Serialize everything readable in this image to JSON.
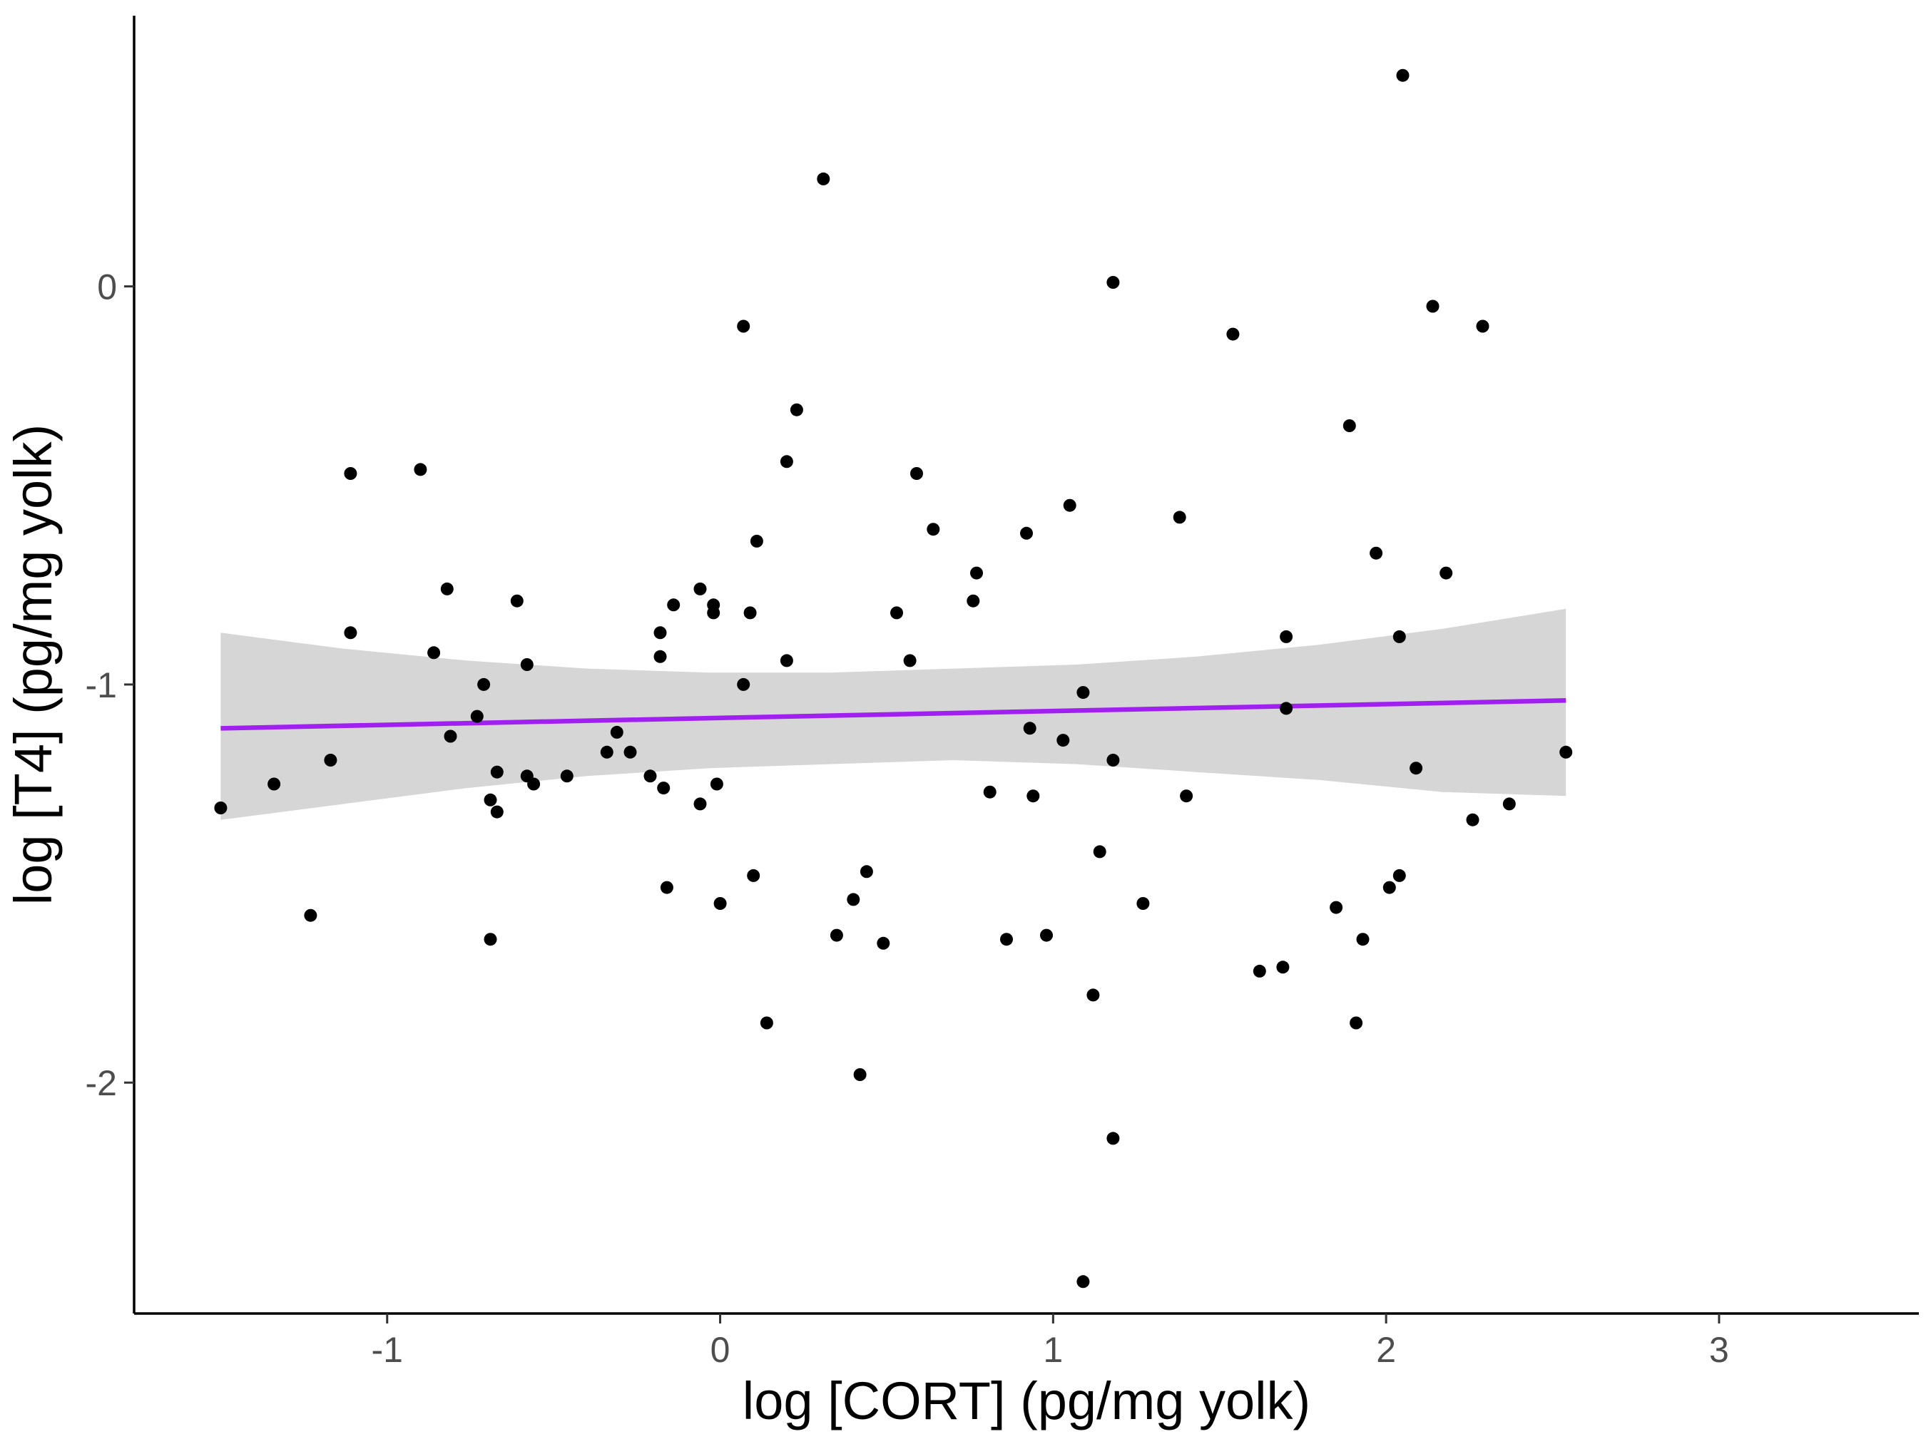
{
  "chart_data": {
    "type": "scatter",
    "title": "",
    "xlabel": "log [CORT] (pg/mg yolk)",
    "ylabel": "log [T4] (pg/mg yolk)",
    "xlim": [
      -1.76,
      3.6
    ],
    "ylim": [
      -2.58,
      0.68
    ],
    "x_ticks": [
      -1,
      0,
      1,
      2,
      3
    ],
    "x_tick_labels": [
      "-1",
      "0",
      "1",
      "2",
      "3"
    ],
    "y_ticks": [
      0,
      -1,
      -2
    ],
    "y_tick_labels": [
      "0",
      "-1",
      "-2"
    ],
    "grid": false,
    "legend": "none",
    "colors": {
      "points": "#000000",
      "fit_line": "#a020f0",
      "confidence_band": "#d6d6d6",
      "axis": "#000000",
      "tick_label": "#4d4d4d"
    },
    "points": [
      [
        -1.5,
        -1.31
      ],
      [
        -1.34,
        -1.25
      ],
      [
        -1.23,
        -1.58
      ],
      [
        -1.17,
        -1.19
      ],
      [
        -1.11,
        -0.47
      ],
      [
        -1.11,
        -0.87
      ],
      [
        -0.9,
        -0.46
      ],
      [
        -0.86,
        -0.92
      ],
      [
        -0.82,
        -0.76
      ],
      [
        -0.81,
        -1.13
      ],
      [
        -0.73,
        -1.08
      ],
      [
        -0.71,
        -1.0
      ],
      [
        -0.69,
        -1.29
      ],
      [
        -0.69,
        -1.64
      ],
      [
        -0.67,
        -1.22
      ],
      [
        -0.67,
        -1.32
      ],
      [
        -0.61,
        -0.79
      ],
      [
        -0.58,
        -0.95
      ],
      [
        -0.58,
        -1.23
      ],
      [
        -0.56,
        -1.25
      ],
      [
        -0.46,
        -1.23
      ],
      [
        -0.34,
        -1.17
      ],
      [
        -0.31,
        -1.12
      ],
      [
        -0.27,
        -1.17
      ],
      [
        -0.21,
        -1.23
      ],
      [
        -0.18,
        -0.87
      ],
      [
        -0.18,
        -0.93
      ],
      [
        -0.17,
        -1.26
      ],
      [
        -0.16,
        -1.51
      ],
      [
        -0.14,
        -0.8
      ],
      [
        -0.06,
        -0.76
      ],
      [
        -0.06,
        -1.3
      ],
      [
        -0.02,
        -0.8
      ],
      [
        -0.02,
        -0.82
      ],
      [
        -0.01,
        -1.25
      ],
      [
        0.0,
        -1.55
      ],
      [
        0.07,
        -0.1
      ],
      [
        0.07,
        -1.0
      ],
      [
        0.09,
        -0.82
      ],
      [
        0.1,
        -1.48
      ],
      [
        0.11,
        -0.64
      ],
      [
        0.14,
        -1.85
      ],
      [
        0.2,
        -0.44
      ],
      [
        0.2,
        -0.94
      ],
      [
        0.23,
        -0.31
      ],
      [
        0.31,
        0.27
      ],
      [
        0.35,
        -1.63
      ],
      [
        0.4,
        -1.54
      ],
      [
        0.42,
        -1.98
      ],
      [
        0.44,
        -1.47
      ],
      [
        0.49,
        -1.65
      ],
      [
        0.53,
        -0.82
      ],
      [
        0.57,
        -0.94
      ],
      [
        0.59,
        -0.47
      ],
      [
        0.64,
        -0.61
      ],
      [
        0.76,
        -0.79
      ],
      [
        0.77,
        -0.72
      ],
      [
        0.81,
        -1.27
      ],
      [
        0.86,
        -1.64
      ],
      [
        0.92,
        -0.62
      ],
      [
        0.93,
        -1.11
      ],
      [
        0.94,
        -1.28
      ],
      [
        0.98,
        -1.63
      ],
      [
        1.03,
        -1.14
      ],
      [
        1.05,
        -0.55
      ],
      [
        1.09,
        -1.02
      ],
      [
        1.09,
        -2.5
      ],
      [
        1.12,
        -1.78
      ],
      [
        1.14,
        -1.42
      ],
      [
        1.18,
        0.01
      ],
      [
        1.18,
        -1.19
      ],
      [
        1.18,
        -2.14
      ],
      [
        1.27,
        -1.55
      ],
      [
        1.38,
        -0.58
      ],
      [
        1.4,
        -1.28
      ],
      [
        1.54,
        -0.12
      ],
      [
        1.62,
        -1.72
      ],
      [
        1.69,
        -1.71
      ],
      [
        1.7,
        -0.88
      ],
      [
        1.7,
        -1.06
      ],
      [
        1.85,
        -1.56
      ],
      [
        1.89,
        -0.35
      ],
      [
        1.91,
        -1.85
      ],
      [
        1.93,
        -1.64
      ],
      [
        1.97,
        -0.67
      ],
      [
        2.01,
        -1.51
      ],
      [
        2.04,
        -0.88
      ],
      [
        2.04,
        -1.48
      ],
      [
        2.05,
        0.53
      ],
      [
        2.09,
        -1.21
      ],
      [
        2.14,
        -0.05
      ],
      [
        2.18,
        -0.72
      ],
      [
        2.26,
        -1.34
      ],
      [
        2.29,
        -0.1
      ],
      [
        2.37,
        -1.3
      ],
      [
        2.54,
        -1.17
      ]
    ],
    "fit": {
      "x": [
        -1.5,
        2.54
      ],
      "y": [
        -1.11,
        -1.04
      ],
      "ci_lower": [
        -1.34,
        -1.3,
        -1.26,
        -1.23,
        -1.21,
        -1.2,
        -1.19,
        -1.2,
        -1.22,
        -1.24,
        -1.27,
        -1.28
      ],
      "ci_upper": [
        -0.87,
        -0.91,
        -0.94,
        -0.96,
        -0.97,
        -0.97,
        -0.96,
        -0.95,
        -0.93,
        -0.9,
        -0.86,
        -0.81
      ],
      "ci_x": [
        -1.5,
        -1.13,
        -0.76,
        -0.4,
        -0.03,
        0.33,
        0.7,
        1.07,
        1.43,
        1.8,
        2.17,
        2.54
      ]
    }
  }
}
